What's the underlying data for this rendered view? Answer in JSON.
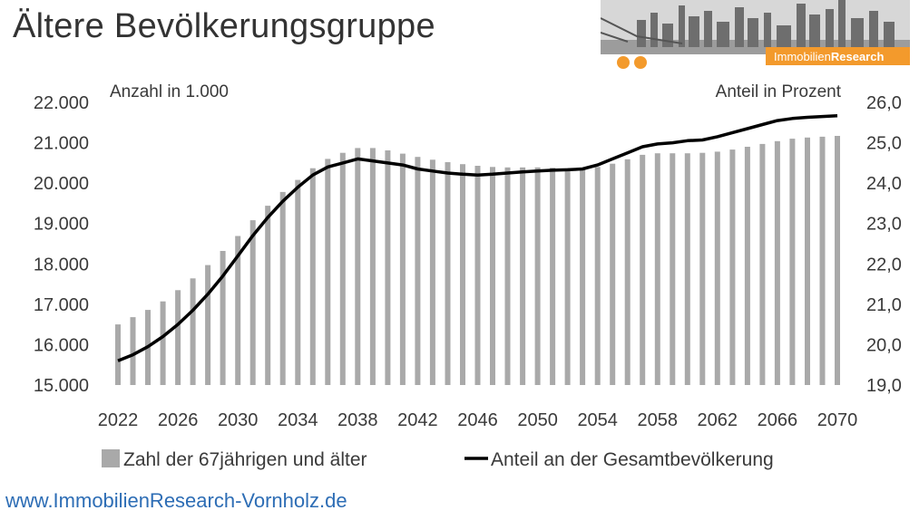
{
  "title": "Ältere Bevölkerungsgruppe",
  "logo": {
    "brand_light": "Immobilien",
    "brand_bold": "Research",
    "accent_color": "#f39a2c"
  },
  "footer": {
    "url": "www.ImmobilienResearch-Vornholz.de"
  },
  "chart_data": {
    "type": "bar",
    "left_axis_label": "Anzahl in 1.000",
    "right_axis_label": "Anteil in Prozent",
    "x_tick_labels": [
      "2022",
      "2026",
      "2030",
      "2034",
      "2038",
      "2042",
      "2046",
      "2050",
      "2054",
      "2058",
      "2062",
      "2066",
      "2070"
    ],
    "y_left_ticks": [
      "15.000",
      "16.000",
      "17.000",
      "18.000",
      "19.000",
      "20.000",
      "21.000",
      "22.000"
    ],
    "y_right_ticks": [
      "19,0",
      "20,0",
      "21,0",
      "22,0",
      "23,0",
      "24,0",
      "25,0",
      "26,0"
    ],
    "ylim_left": [
      15000,
      22000
    ],
    "ylim_right": [
      19.0,
      26.0
    ],
    "grid": false,
    "legend_position": "bottom",
    "bar_color": "#a9a9a9",
    "line_color": "#000000",
    "x": [
      2022,
      2023,
      2024,
      2025,
      2026,
      2027,
      2028,
      2029,
      2030,
      2031,
      2032,
      2033,
      2034,
      2035,
      2036,
      2037,
      2038,
      2039,
      2040,
      2041,
      2042,
      2043,
      2044,
      2045,
      2046,
      2047,
      2048,
      2049,
      2050,
      2051,
      2052,
      2053,
      2054,
      2055,
      2056,
      2057,
      2058,
      2059,
      2060,
      2061,
      2062,
      2063,
      2064,
      2065,
      2066,
      2067,
      2068,
      2069,
      2070
    ],
    "series": [
      {
        "name": "Zahl der 67jährigen und älter",
        "kind": "bar",
        "axis": "left",
        "values": [
          16500,
          16680,
          16860,
          17070,
          17350,
          17640,
          17970,
          18320,
          18690,
          19080,
          19440,
          19780,
          20080,
          20370,
          20600,
          20750,
          20870,
          20870,
          20810,
          20730,
          20650,
          20580,
          20520,
          20470,
          20430,
          20400,
          20390,
          20390,
          20390,
          20380,
          20370,
          20360,
          20400,
          20480,
          20590,
          20700,
          20740,
          20740,
          20740,
          20750,
          20780,
          20830,
          20900,
          20970,
          21040,
          21100,
          21130,
          21150,
          21170
        ]
      },
      {
        "name": "Anteil an der Gesamtbevölkerung",
        "kind": "line",
        "axis": "right",
        "values": [
          19.6,
          19.75,
          19.95,
          20.2,
          20.5,
          20.85,
          21.25,
          21.7,
          22.2,
          22.7,
          23.15,
          23.55,
          23.9,
          24.2,
          24.4,
          24.5,
          24.6,
          24.55,
          24.5,
          24.45,
          24.35,
          24.3,
          24.25,
          24.22,
          24.2,
          24.22,
          24.25,
          24.28,
          24.3,
          24.32,
          24.33,
          24.35,
          24.45,
          24.6,
          24.75,
          24.9,
          24.97,
          25.0,
          25.05,
          25.07,
          25.15,
          25.25,
          25.35,
          25.45,
          25.55,
          25.6,
          25.63,
          25.65,
          25.67
        ]
      }
    ]
  }
}
